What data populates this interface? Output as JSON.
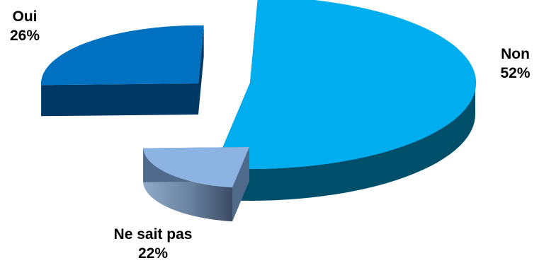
{
  "chart_data": {
    "type": "pie",
    "style": "3d-exploded",
    "slices": [
      {
        "label": "Non",
        "value": 52,
        "value_label": "52%",
        "color": "#00AEEF",
        "side_color": "#004F6A"
      },
      {
        "label": "Ne sait pas",
        "value": 22,
        "value_label": "22%",
        "color": "#8DB3E2",
        "side_color": "#4F6A8A"
      },
      {
        "label": "Oui",
        "value": 26,
        "value_label": "26%",
        "color": "#0070C0",
        "side_color": "#003865"
      }
    ],
    "legend": "none"
  }
}
